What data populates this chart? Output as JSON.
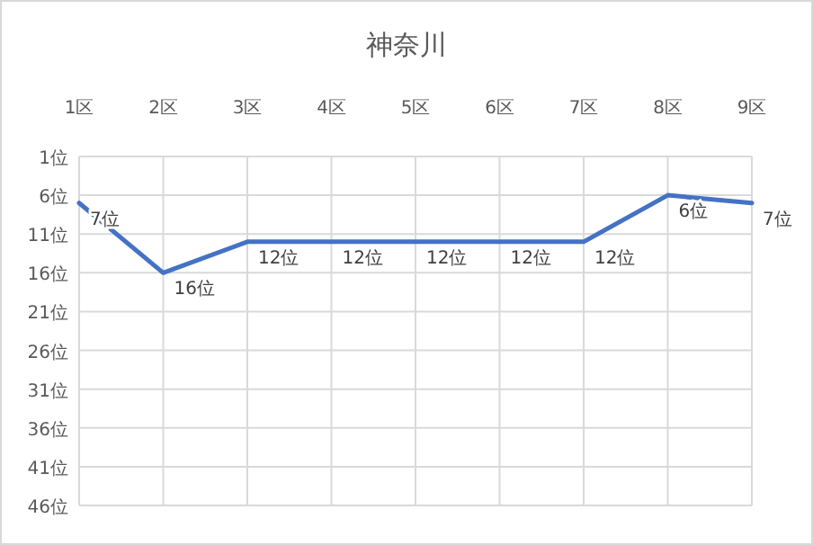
{
  "chart_data": {
    "type": "line",
    "title": "神奈川",
    "categories": [
      "1区",
      "2区",
      "3区",
      "4区",
      "5区",
      "6区",
      "7区",
      "8区",
      "9区"
    ],
    "values": [
      7,
      16,
      12,
      12,
      12,
      12,
      12,
      6,
      7
    ],
    "value_labels": [
      "7位",
      "16位",
      "12位",
      "12位",
      "12位",
      "12位",
      "12位",
      "6位",
      "7位"
    ],
    "color": "#4472c4",
    "ylim": [
      46,
      1
    ],
    "yticks": [
      {
        "value": 1,
        "label": "1位"
      },
      {
        "value": 6,
        "label": "6位"
      },
      {
        "value": 11,
        "label": "11位"
      },
      {
        "value": 16,
        "label": "16位"
      },
      {
        "value": 21,
        "label": "21位"
      },
      {
        "value": 26,
        "label": "26位"
      },
      {
        "value": 31,
        "label": "31位"
      },
      {
        "value": 36,
        "label": "36位"
      },
      {
        "value": 41,
        "label": "41位"
      },
      {
        "value": 46,
        "label": "46位"
      }
    ],
    "grid": true
  }
}
